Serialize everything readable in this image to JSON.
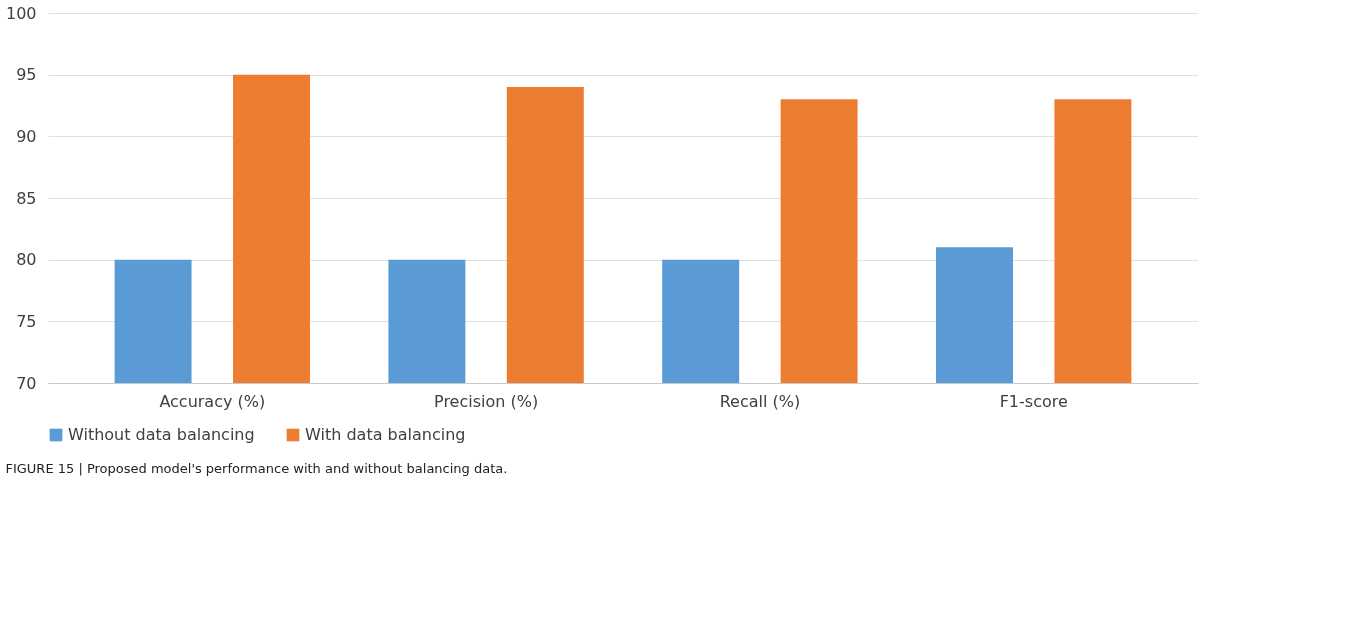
{
  "chart_data": {
    "type": "bar",
    "categories": [
      "Accuracy (%)",
      "Precision (%)",
      "Recall (%)",
      "F1-score"
    ],
    "series": [
      {
        "name": "Without data balancing",
        "color": "#5b9bd5",
        "values": [
          80,
          80,
          80,
          81
        ]
      },
      {
        "name": "With data balancing",
        "color": "#ed7d31",
        "values": [
          95,
          94,
          93,
          93
        ]
      }
    ],
    "ylim": [
      70,
      100
    ],
    "yticks": [
      70,
      75,
      80,
      85,
      90,
      95,
      100
    ],
    "grid": "y",
    "legend": "bottom",
    "annotations": [
      "FIGURE 15 | Proposed model's performance with and without balancing data."
    ]
  }
}
